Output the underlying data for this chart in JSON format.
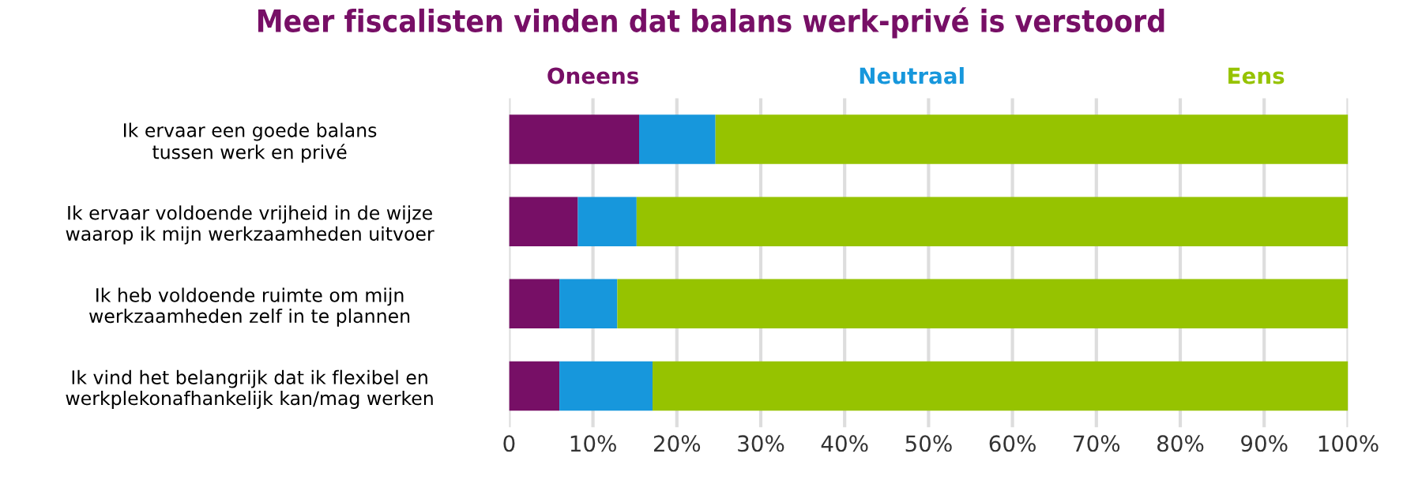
{
  "chart_data": {
    "type": "bar",
    "orientation": "horizontal",
    "stacked": true,
    "title": "Meer fiscalisten vinden dat balans werk-privé is verstoord",
    "categories": [
      "Ik ervaar een goede balans\ntussen werk en privé",
      "Ik ervaar voldoende vrijheid in de wijze\nwaarop ik mijn werkzaamheden uitvoer",
      "Ik heb voldoende ruimte om mijn\nwerkzaamheden zelf in te plannen",
      "Ik vind het belangrijk dat ik flexibel en\nwerkplekonafhankelijk kan/mag werken"
    ],
    "series": [
      {
        "name": "Oneens",
        "color": "#770f66",
        "values": [
          15.5,
          8.2,
          6.0,
          6.0
        ]
      },
      {
        "name": "Neutraal",
        "color": "#1797dc",
        "values": [
          9.1,
          7.0,
          6.9,
          11.1
        ]
      },
      {
        "name": "Eens",
        "color": "#96c300",
        "values": [
          75.4,
          84.8,
          87.1,
          82.9
        ]
      }
    ],
    "xlim": [
      0,
      100
    ],
    "xticks": [
      0,
      {
        "value": 10,
        "label": "10%"
      },
      {
        "value": 20,
        "label": "20%"
      },
      {
        "value": 30,
        "label": "30%"
      },
      {
        "value": 40,
        "label": "40%"
      },
      {
        "value": 50,
        "label": "50%"
      },
      {
        "value": 60,
        "label": "60%"
      },
      {
        "value": 70,
        "label": "70%"
      },
      {
        "value": 80,
        "label": "80%"
      },
      {
        "value": 90,
        "label": "90%"
      },
      {
        "value": 100,
        "label": "100%"
      }
    ],
    "grid": "x",
    "legend": "top"
  }
}
